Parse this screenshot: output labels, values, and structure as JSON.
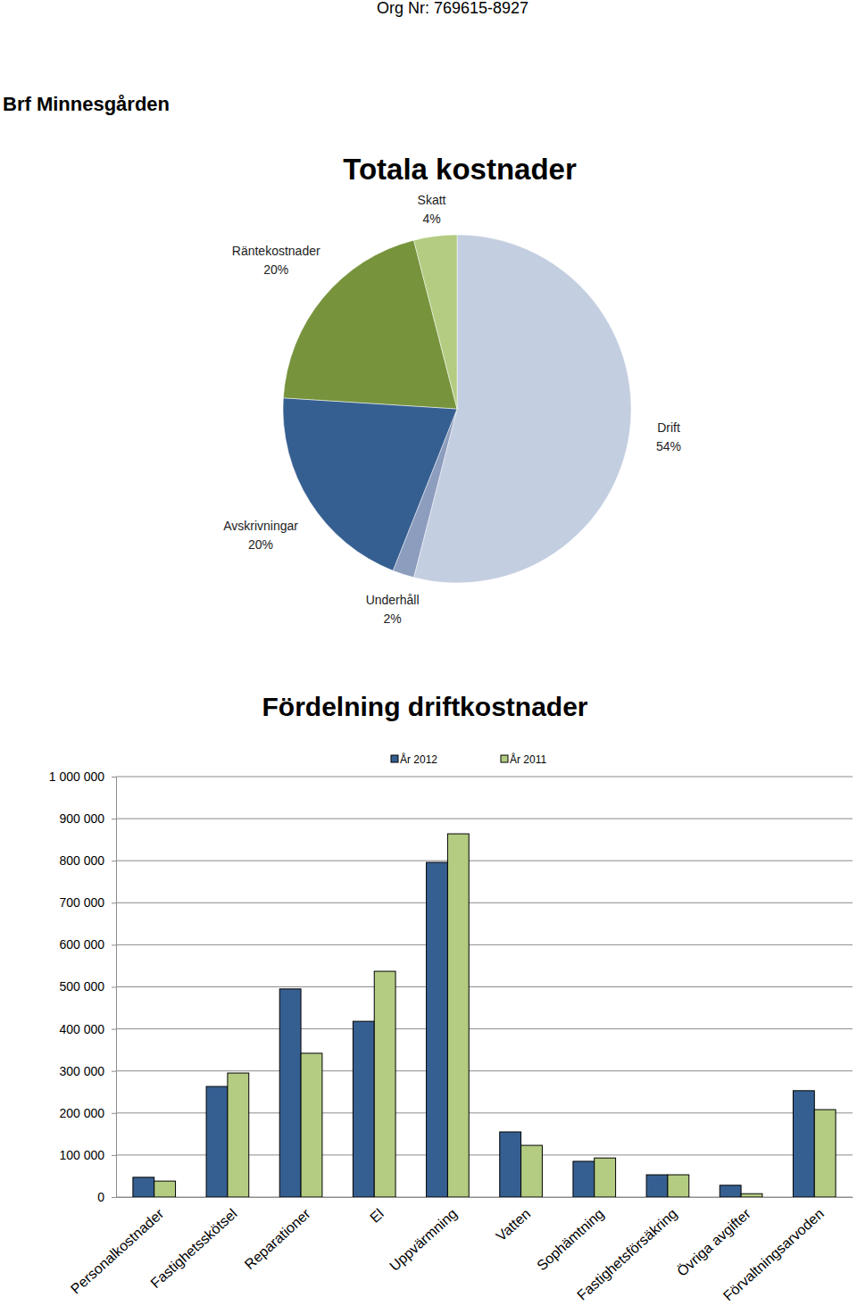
{
  "header": {
    "org_nr": "Org Nr: 769615-8927",
    "name": "Brf Minnesgården"
  },
  "chart_data": [
    {
      "type": "pie",
      "title": "Totala kostnader",
      "categories": [
        "Drift",
        "Underhåll",
        "Avskrivningar",
        "Räntekostnader",
        "Skatt"
      ],
      "values": [
        54,
        2,
        20,
        20,
        4
      ],
      "value_labels": [
        "54%",
        "2%",
        "20%",
        "20%",
        "4%"
      ],
      "colors": [
        "#c3cee0",
        "#8d9dbe",
        "#365f91",
        "#77933c",
        "#b3cc82"
      ],
      "data_labels": true
    },
    {
      "type": "bar",
      "title": "Fördelning driftkostnader",
      "categories": [
        "Personalkostnader",
        "Fastighetsskötsel",
        "Reparationer",
        "El",
        "Uppvärmning",
        "Vatten",
        "Sophämtning",
        "Fastighetsförsäkring",
        "Övriga avgifter",
        "Förvaltningsarvoden"
      ],
      "series": [
        {
          "name": "År 2012",
          "color": "#365f91",
          "values": [
            47000,
            263000,
            495000,
            418000,
            796000,
            155000,
            85000,
            53000,
            28000,
            253000
          ]
        },
        {
          "name": "År 2011",
          "color": "#b3cc82",
          "values": [
            38000,
            295000,
            342000,
            537000,
            864000,
            123000,
            93000,
            53000,
            8000,
            208000
          ]
        }
      ],
      "ylim": [
        0,
        1000000
      ],
      "yticks": [
        0,
        {
          "value": 100000,
          "label": "100 000"
        },
        {
          "value": 200000,
          "label": "200 000"
        },
        {
          "value": 300000,
          "label": "300 000"
        },
        {
          "value": 400000,
          "label": "400 000"
        },
        {
          "value": 500000,
          "label": "500 000"
        },
        {
          "value": 600000,
          "label": "600 000"
        },
        {
          "value": 700000,
          "label": "700 000"
        },
        {
          "value": 800000,
          "label": "800 000"
        },
        {
          "value": 900000,
          "label": "900 000"
        },
        {
          "value": 1000000,
          "label": "1 000 000"
        }
      ],
      "grid": true,
      "legend": "top"
    }
  ]
}
